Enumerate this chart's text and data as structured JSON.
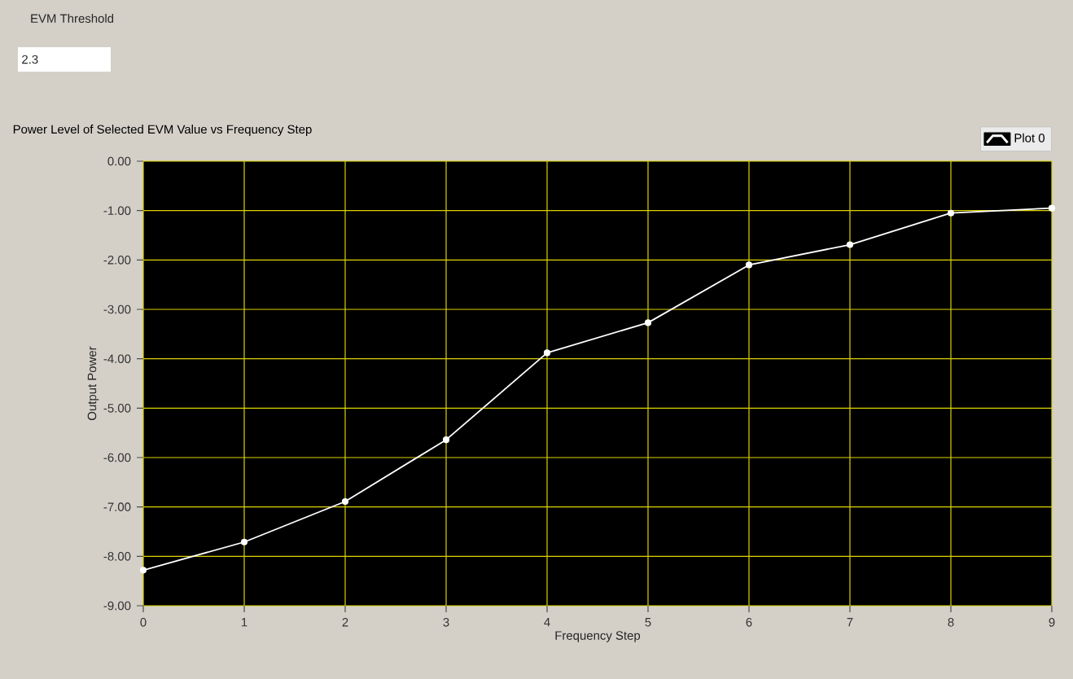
{
  "chart_data": {
    "type": "line",
    "title": "Power Level of Selected EVM Value vs Frequency Step",
    "xlabel": "Frequency Step",
    "ylabel": "Output Power",
    "annotations": [
      "EVM Threshold",
      "2.3"
    ],
    "x": [
      0,
      1,
      2,
      3,
      4,
      5,
      6,
      7,
      8,
      9
    ],
    "series": [
      {
        "name": "Plot 0",
        "color": "#ffffff",
        "values": [
          -8.28,
          -7.71,
          -6.89,
          -5.64,
          -3.88,
          -3.27,
          -2.1,
          -1.69,
          -1.05,
          -0.95
        ]
      }
    ],
    "xlim": [
      0,
      9
    ],
    "ylim": [
      -9,
      0
    ],
    "xticks": [
      0,
      1,
      2,
      3,
      4,
      5,
      6,
      7,
      8,
      9
    ],
    "yticks": [
      {
        "value": 0,
        "label": "0.00"
      },
      {
        "value": -1,
        "label": "-1.00"
      },
      {
        "value": -2,
        "label": "-2.00"
      },
      {
        "value": -3,
        "label": "-3.00"
      },
      {
        "value": -4,
        "label": "-4.00"
      },
      {
        "value": -5,
        "label": "-5.00"
      },
      {
        "value": -6,
        "label": "-6.00"
      },
      {
        "value": -7,
        "label": "-7.00"
      },
      {
        "value": -8,
        "label": "-8.00"
      },
      {
        "value": -9,
        "label": "-9.00"
      }
    ],
    "grid": true,
    "legend": "top right",
    "marker": "circle",
    "line_style": "solid"
  }
}
